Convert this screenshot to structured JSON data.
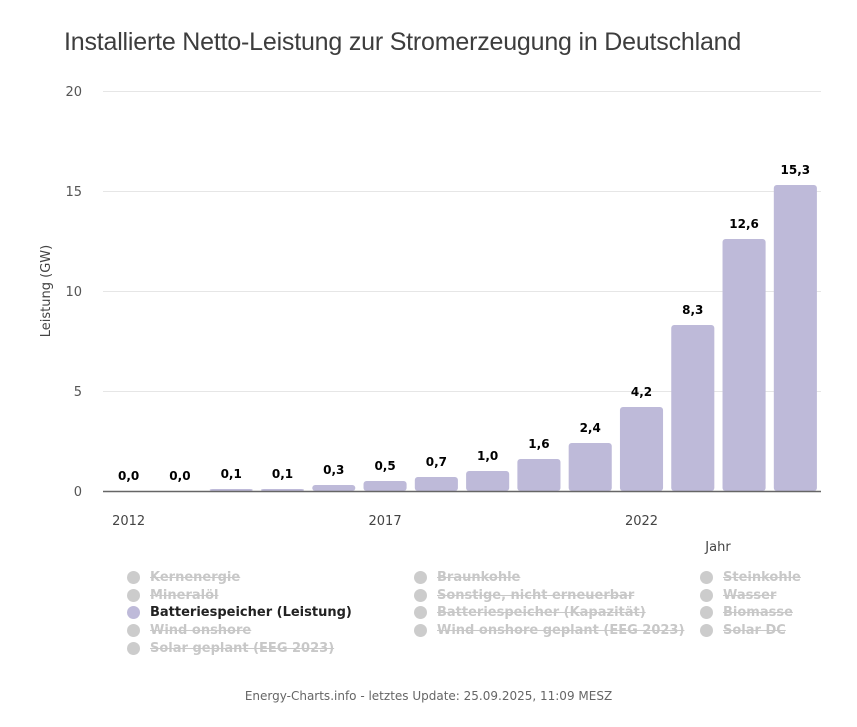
{
  "header": {
    "title": "Installierte Netto-Leistung zur Stromerzeugung in Deutschland"
  },
  "chart_data": {
    "type": "bar",
    "title": "Installierte Netto-Leistung zur Stromerzeugung in Deutschland",
    "xlabel": "Jahr",
    "ylabel": "Leistung (GW)",
    "ylim": [
      0,
      20
    ],
    "yticks": [
      "0",
      "5",
      "10",
      "15",
      "20"
    ],
    "ytick_values": [
      0,
      5,
      10,
      15,
      20
    ],
    "grid": true,
    "categories": [
      "2012",
      "2013",
      "2014",
      "2015",
      "2016",
      "2017",
      "2018",
      "2019",
      "2020",
      "2021",
      "2022",
      "2023",
      "2024",
      "2025"
    ],
    "xtick_labels_shown": [
      "2012",
      "2017",
      "2022"
    ],
    "series": [
      {
        "name": "Batteriespeicher (Leistung)",
        "color": "#bebad9",
        "values": [
          0.0,
          0.0,
          0.1,
          0.1,
          0.3,
          0.5,
          0.7,
          1.0,
          1.6,
          2.4,
          4.2,
          8.3,
          12.6,
          15.3
        ],
        "labels": [
          "0,0",
          "0,0",
          "0,1",
          "0,1",
          "0,3",
          "0,5",
          "0,7",
          "1,0",
          "1,6",
          "2,4",
          "4,2",
          "8,3",
          "12,6",
          "15,3"
        ]
      }
    ],
    "legend_position": "bottom"
  },
  "legend": {
    "items": [
      {
        "label": "Kernenergie",
        "active": false
      },
      {
        "label": "Mineralöl",
        "active": false
      },
      {
        "label": "Batteriespeicher (Leistung)",
        "active": true,
        "color": "#bebad9"
      },
      {
        "label": "Wind onshore",
        "active": false
      },
      {
        "label": "Solar geplant (EEG 2023)",
        "active": false
      },
      {
        "label": "Braunkohle",
        "active": false
      },
      {
        "label": "Sonstige, nicht erneuerbar",
        "active": false
      },
      {
        "label": "Batteriespeicher (Kapazität)",
        "active": false
      },
      {
        "label": "Wind onshore geplant (EEG 2023)",
        "active": false
      },
      {
        "label": "Steinkohle",
        "active": false
      },
      {
        "label": "Wasser",
        "active": false
      },
      {
        "label": "Biomasse",
        "active": false
      },
      {
        "label": "Solar DC",
        "active": false
      }
    ]
  },
  "footer": {
    "text": "Energy-Charts.info - letztes Update: 25.09.2025, 11:09 MESZ"
  }
}
